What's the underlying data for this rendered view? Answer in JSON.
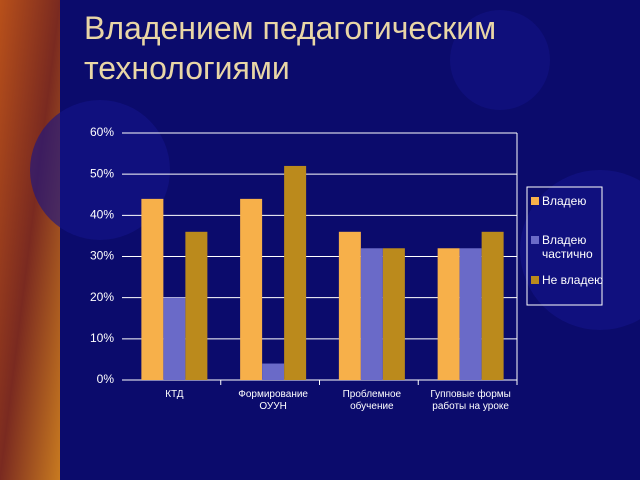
{
  "title": "Владением педагогическим технологиями",
  "chart_data": {
    "type": "bar",
    "categories": [
      "КТД",
      "Формирование ОУУН",
      "Проблемное обучение",
      "Гупповые формы работы на уроке"
    ],
    "series": [
      {
        "name": "Владею",
        "color": "#f7b04a",
        "values": [
          44,
          44,
          36,
          32
        ]
      },
      {
        "name": "Владею частично",
        "color": "#6a6ac8",
        "values": [
          20,
          4,
          32,
          32
        ]
      },
      {
        "name": "Не владею",
        "color": "#bb8a1c",
        "values": [
          36,
          52,
          32,
          36
        ]
      }
    ],
    "ylim": [
      0,
      60
    ],
    "yticks": [
      {
        "value": 0,
        "label": "0%"
      },
      {
        "value": 10,
        "label": "10%"
      },
      {
        "value": 20,
        "label": "20%"
      },
      {
        "value": 30,
        "label": "30%"
      },
      {
        "value": 40,
        "label": "40%"
      },
      {
        "value": 50,
        "label": "50%"
      },
      {
        "value": 60,
        "label": "60%"
      }
    ],
    "grid": true,
    "legend": "right"
  }
}
